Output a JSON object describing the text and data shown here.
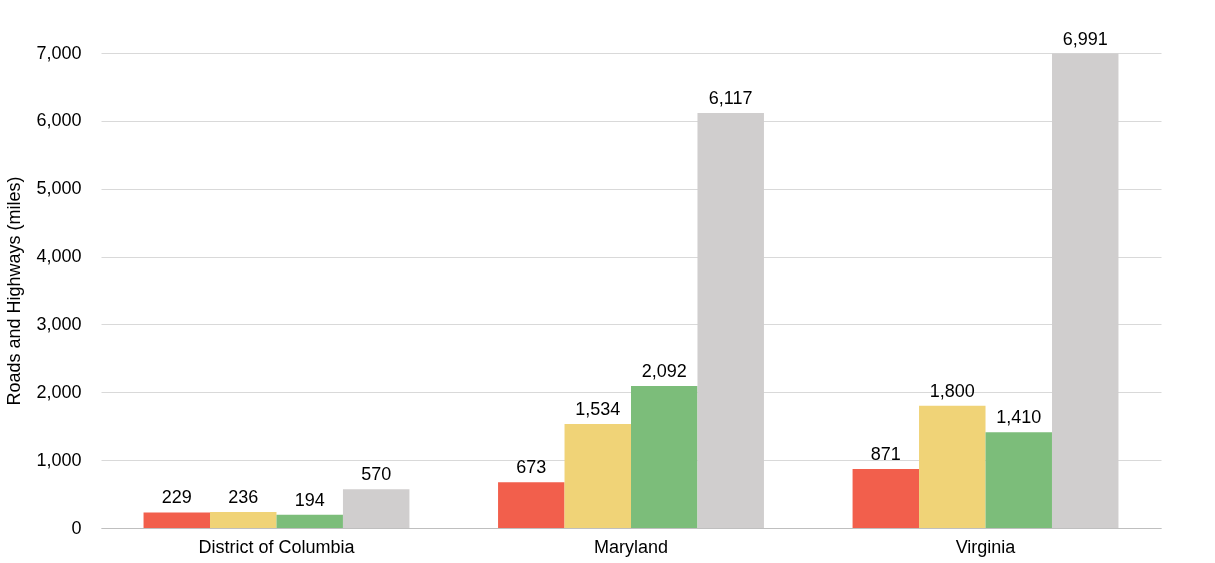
{
  "chart_data": {
    "type": "bar",
    "ylabel": "Roads and Highways (miles)",
    "categories": [
      "District of Columbia",
      "Maryland",
      "Virginia"
    ],
    "series": [
      {
        "color": "#f25f4c",
        "values": [
          229,
          673,
          871
        ],
        "value_labels": [
          "229",
          "673",
          "871"
        ]
      },
      {
        "color": "#f0d377",
        "values": [
          236,
          1534,
          1800
        ],
        "value_labels": [
          "236",
          "1,534",
          "1,800"
        ]
      },
      {
        "color": "#7cbd7a",
        "values": [
          194,
          2092,
          1410
        ],
        "value_labels": [
          "194",
          "2,092",
          "1,410"
        ]
      },
      {
        "color": "#d0cece",
        "values": [
          570,
          6117,
          6991
        ],
        "value_labels": [
          "570",
          "6,117",
          "6,991"
        ]
      }
    ],
    "ylim": [
      0,
      7000
    ],
    "yticks": [
      0,
      {
        "value": 1000,
        "label": "1,000"
      },
      {
        "value": 2000,
        "label": "2,000"
      },
      {
        "value": 3000,
        "label": "3,000"
      },
      {
        "value": 4000,
        "label": "4,000"
      },
      {
        "value": 5000,
        "label": "5,000"
      },
      {
        "value": 6000,
        "label": "6,000"
      },
      {
        "value": 7000,
        "label": "7,000"
      }
    ],
    "grid": "y",
    "legend": false
  }
}
